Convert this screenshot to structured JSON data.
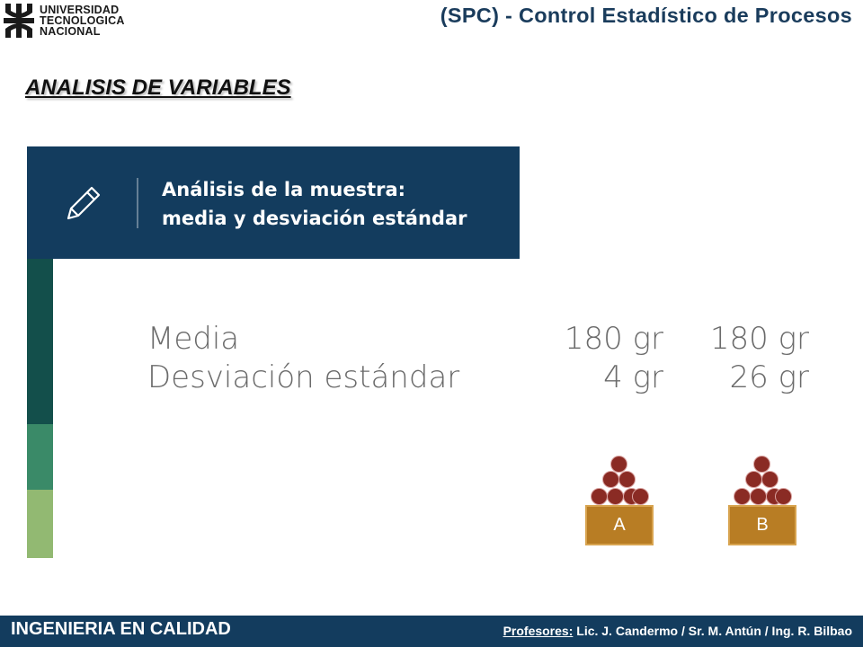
{
  "header": {
    "logo_lines": [
      "UNIVERSIDAD",
      "TECNOLOGICA",
      "NACIONAL"
    ],
    "title": "(SPC) - Control Estadístico de Procesos"
  },
  "section_title": "ANALISIS DE VARIABLES",
  "banner": {
    "icon": "pencil-icon",
    "line1": "Análisis de la muestra:",
    "line2": "media y desviación estándar"
  },
  "stats": [
    {
      "label": "Media",
      "a": "180 gr",
      "b": "180 gr"
    },
    {
      "label": "Desviación estándar",
      "a": "4 gr",
      "b": "26 gr"
    }
  ],
  "baskets": [
    {
      "label": "A"
    },
    {
      "label": "B"
    }
  ],
  "footer": {
    "left": "INGENIERIA EN CALIDAD",
    "profesores_label": "Profesores:",
    "profesores": "Lic. J. Candermo / Sr. M. Antún / Ing. R. Bilbao"
  },
  "colors": {
    "navy": "#133c5e",
    "dark_teal": "#134f4b",
    "green": "#3a8a68",
    "light_green": "#92b972",
    "basket": "#b87d24",
    "fruit": "#8a2b24"
  }
}
